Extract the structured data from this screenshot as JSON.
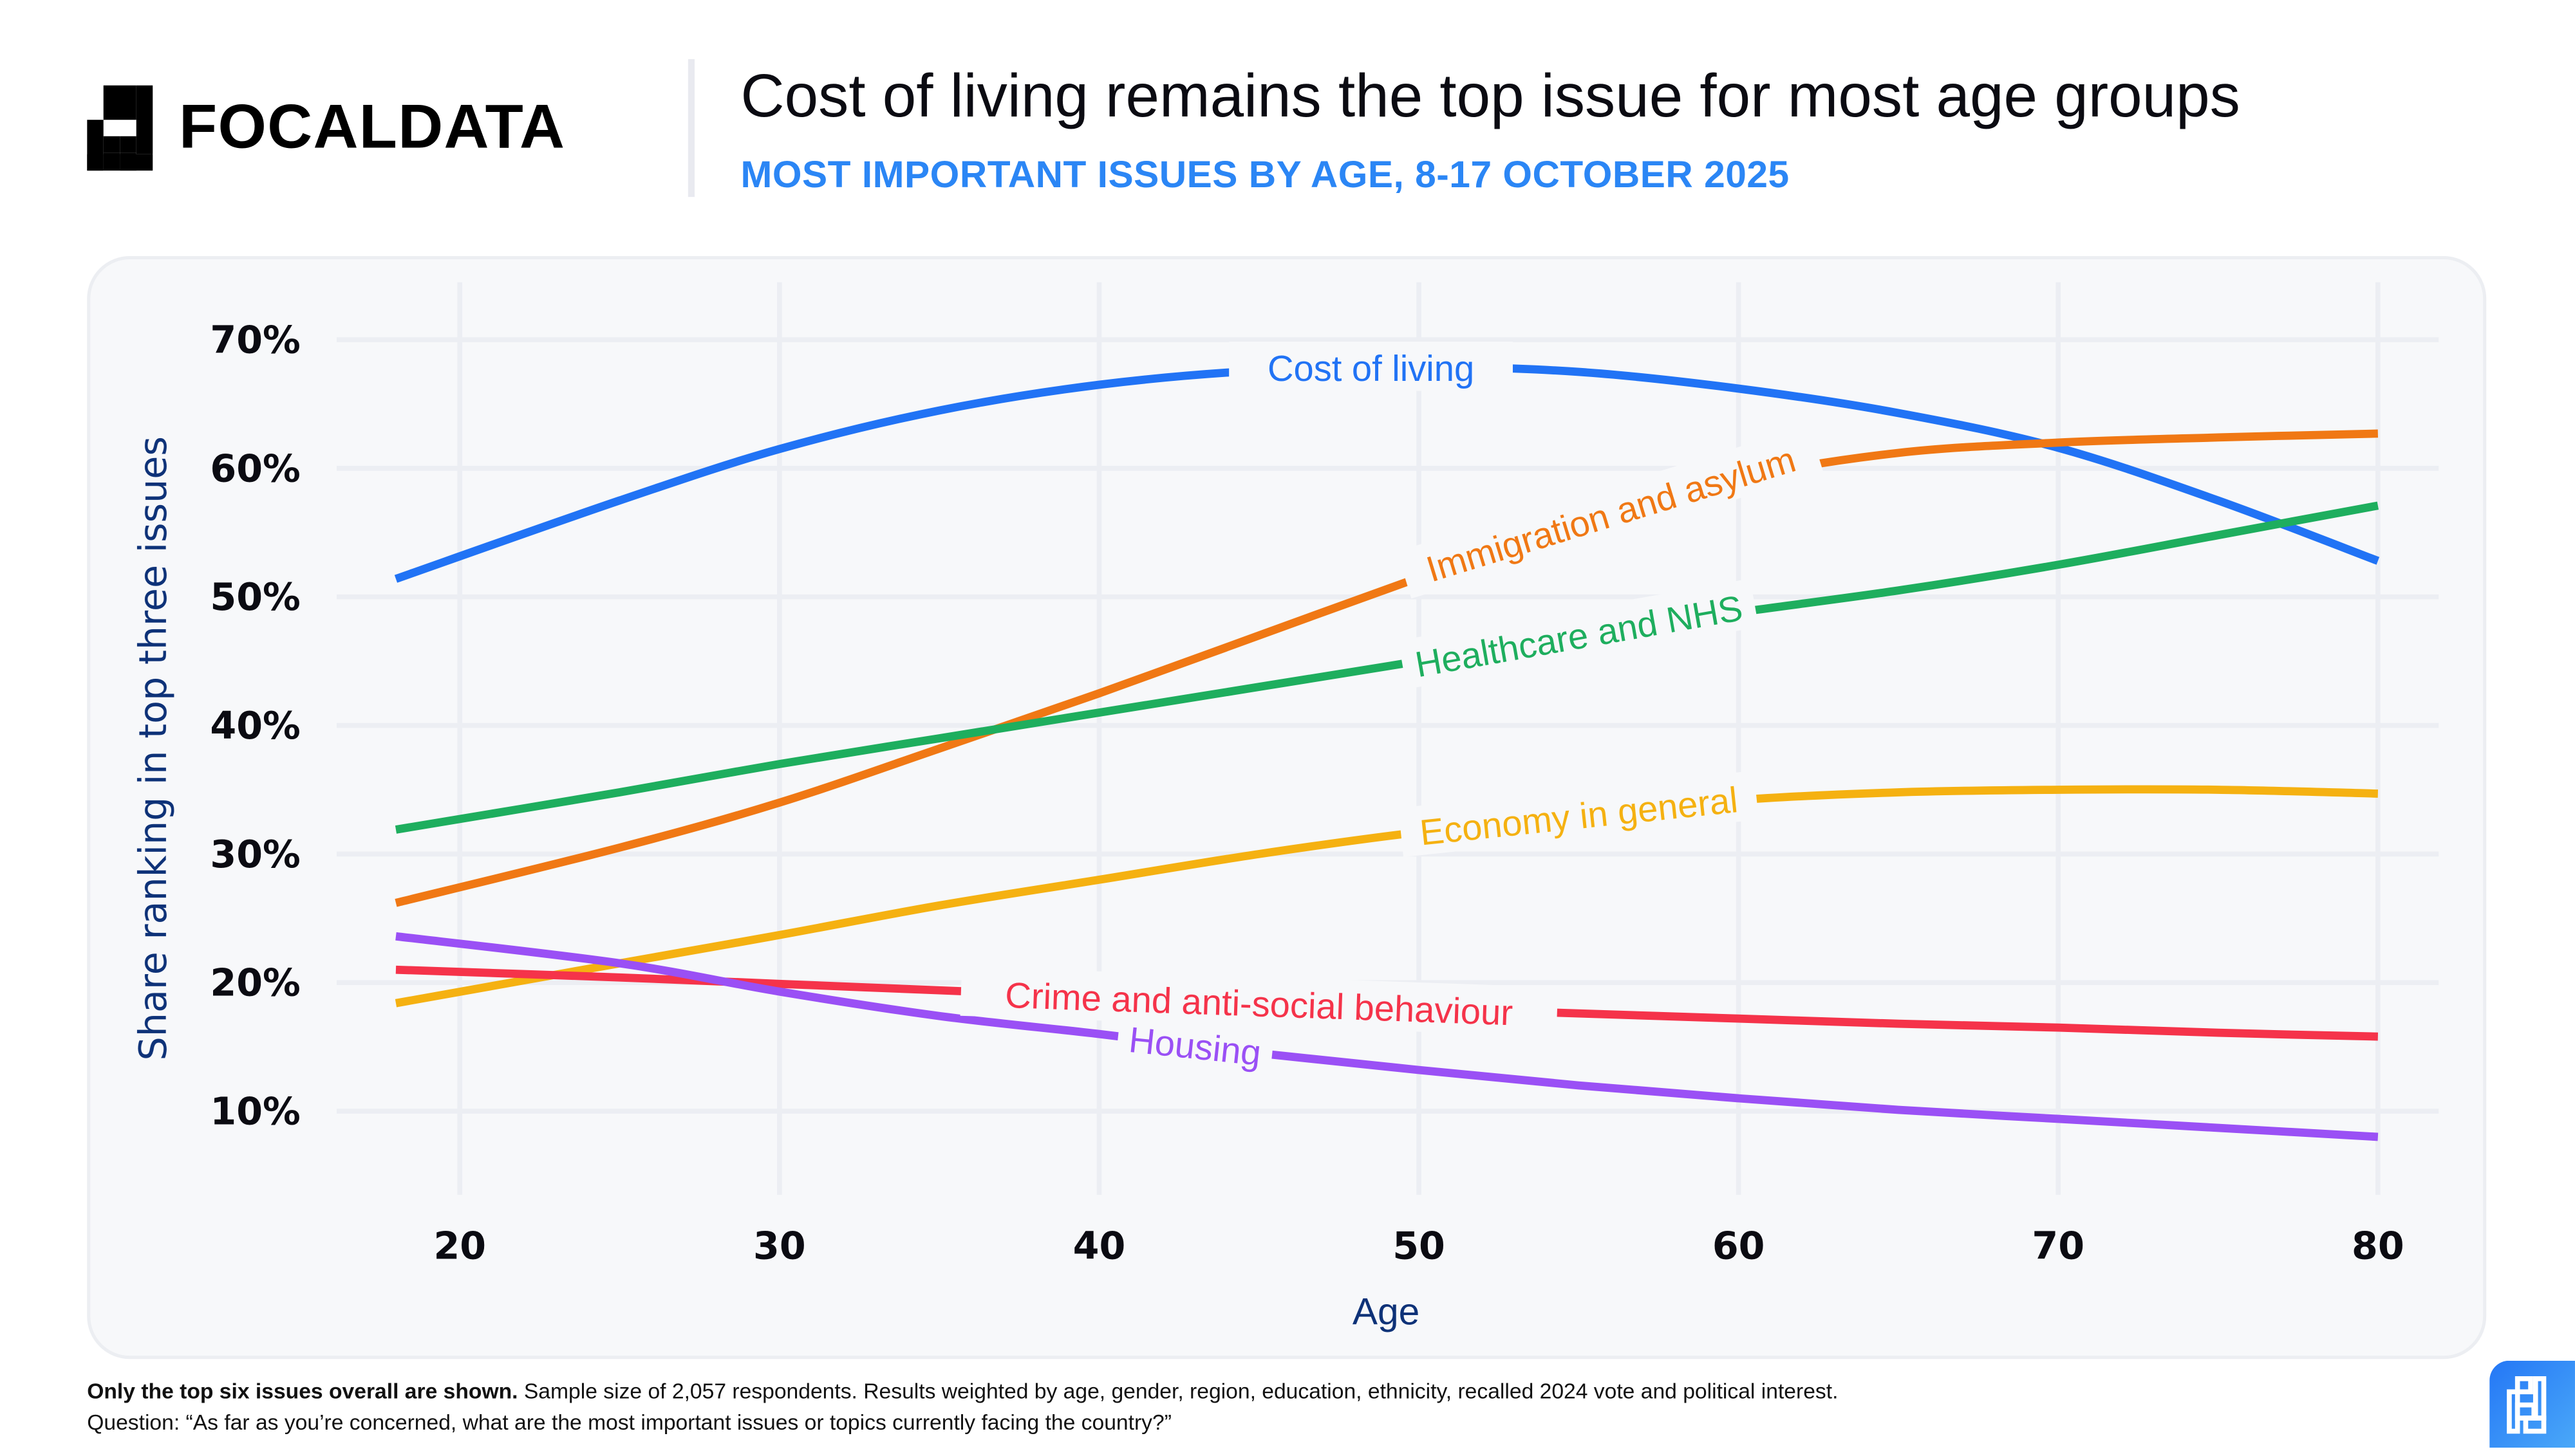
{
  "brand": {
    "name": "FOCALDATA",
    "accent": "#2b86f5"
  },
  "header": {
    "title": "Cost of living remains the top issue for most age groups",
    "subtitle": "MOST IMPORTANT ISSUES BY AGE, 8-17 OCTOBER 2025"
  },
  "footer": {
    "note_bold": "Only the top six issues overall are shown.",
    "note_rest": " Sample size of 2,057 respondents. Results weighted by age, gender, region, education, ethnicity, recalled 2024 vote and political interest.",
    "question": "Question: “As far as you’re concerned, what are the most important issues or topics currently facing the country?”"
  },
  "chart_data": {
    "type": "line",
    "title": "Cost of living remains the top issue for most age groups",
    "subtitle": "MOST IMPORTANT ISSUES BY AGE, 8-17 OCTOBER 2025",
    "xlabel": "Age",
    "ylabel": "Share ranking in top three issues",
    "xlim": [
      16,
      82
    ],
    "ylim": [
      3,
      72
    ],
    "xticks": [
      20,
      30,
      40,
      50,
      60,
      70,
      80
    ],
    "xtick_labels": [
      "20",
      "30",
      "40",
      "50",
      "60",
      "70",
      "80"
    ],
    "yticks": [
      10,
      20,
      30,
      40,
      50,
      60,
      70
    ],
    "ytick_labels": [
      "10%",
      "20%",
      "30%",
      "40%",
      "50%",
      "60%",
      "70%"
    ],
    "grid": true,
    "legend": "inline labels on lines",
    "x": [
      18,
      25,
      30,
      35,
      40,
      45,
      50,
      55,
      60,
      65,
      70,
      75,
      80
    ],
    "series": [
      {
        "name": "Cost of living",
        "color": "#2173f5",
        "values": [
          51.4,
          57.5,
          61.5,
          64.5,
          66.5,
          67.6,
          67.9,
          67.5,
          66.2,
          64.3,
          61.6,
          57.5,
          52.8
        ],
        "label_at": 48.5,
        "label_angle": 0
      },
      {
        "name": "Immigration and asylum",
        "color": "#f07814",
        "values": [
          26.2,
          30.5,
          34.0,
          38.2,
          42.5,
          47.0,
          51.5,
          55.8,
          59.2,
          61.2,
          62.0,
          62.4,
          62.7
        ],
        "label_at": 56.0,
        "label_angle": -17
      },
      {
        "name": "Healthcare and NHS",
        "color": "#1eae5e",
        "values": [
          31.9,
          34.8,
          37.0,
          39.0,
          41.0,
          43.0,
          45.0,
          47.0,
          48.8,
          50.5,
          52.5,
          54.8,
          57.1
        ],
        "label_at": 55.0,
        "label_angle": -10
      },
      {
        "name": "Economy in general",
        "color": "#f5b111",
        "values": [
          18.4,
          21.5,
          23.7,
          26.0,
          28.0,
          30.0,
          31.7,
          33.0,
          34.2,
          34.8,
          35.0,
          35.0,
          34.7
        ],
        "label_at": 55.0,
        "label_angle": -6
      },
      {
        "name": "Crime and anti-social behaviour",
        "color": "#f5334a",
        "values": [
          21.0,
          20.4,
          19.9,
          19.4,
          18.9,
          18.4,
          18.0,
          17.6,
          17.2,
          16.8,
          16.5,
          16.1,
          15.8
        ],
        "label_at": 45.0,
        "label_angle": 2
      },
      {
        "name": "Housing",
        "color": "#9a50f5",
        "values": [
          23.6,
          21.5,
          19.3,
          17.4,
          16.0,
          14.5,
          13.2,
          12.0,
          11.0,
          10.1,
          9.4,
          8.7,
          8.0
        ],
        "label_at": 43.0,
        "label_angle": 6
      }
    ]
  }
}
